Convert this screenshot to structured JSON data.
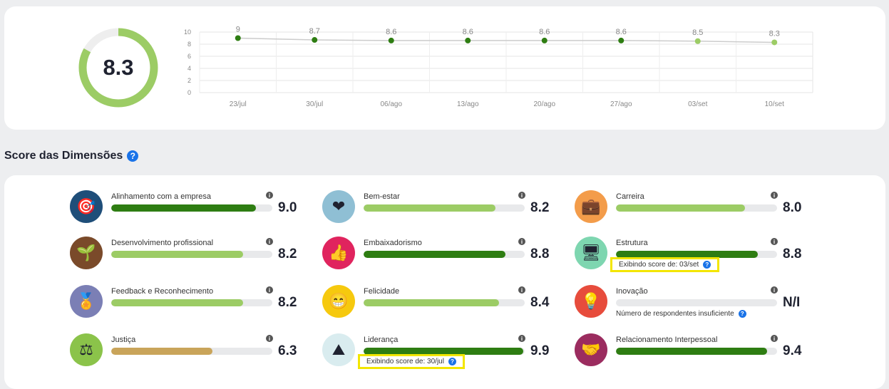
{
  "overall": {
    "score": "8.3",
    "score_fraction": 0.83,
    "ring_color": "#9ccc65",
    "ring_track": "#eeeeee"
  },
  "chart_data": {
    "type": "line",
    "categories": [
      "23/jul",
      "30/jul",
      "06/ago",
      "13/ago",
      "20/ago",
      "27/ago",
      "03/set",
      "10/set"
    ],
    "values": [
      9,
      8.7,
      8.6,
      8.6,
      8.6,
      8.6,
      8.5,
      8.3
    ],
    "data_labels": [
      "9",
      "8.7",
      "8.6",
      "8.6",
      "8.6",
      "8.6",
      "8.5",
      "8.3"
    ],
    "yticks": [
      "10",
      "8",
      "6",
      "4",
      "2",
      "0"
    ],
    "ylim": [
      0,
      10
    ],
    "point_colors": [
      "#2e7d12",
      "#2e7d12",
      "#2e7d12",
      "#2e7d12",
      "#2e7d12",
      "#2e7d12",
      "#9ccc65",
      "#9ccc65"
    ],
    "line_color": "#cccccc",
    "grid": true
  },
  "section": {
    "title": "Score das Dimensões",
    "help": "?"
  },
  "dimensions": [
    {
      "name": "Alinhamento com a empresa",
      "score": "9.0",
      "fill": 0.9,
      "color": "#2e7d12",
      "icon": "🎯",
      "icon_bg": "#1f4e79",
      "info": "i"
    },
    {
      "name": "Bem-estar",
      "score": "8.2",
      "fill": 0.82,
      "color": "#9ccc65",
      "icon": "❤",
      "icon_bg": "#8fbfd4",
      "info": "i"
    },
    {
      "name": "Carreira",
      "score": "8.0",
      "fill": 0.8,
      "color": "#9ccc65",
      "icon": "💼",
      "icon_bg": "#f39c4a",
      "info": "i"
    },
    {
      "name": "Desenvolvimento profissional",
      "score": "8.2",
      "fill": 0.82,
      "color": "#9ccc65",
      "icon": "🌱",
      "icon_bg": "#7a4a2a",
      "info": "i"
    },
    {
      "name": "Embaixadorismo",
      "score": "8.8",
      "fill": 0.88,
      "color": "#2e7d12",
      "icon": "👍",
      "icon_bg": "#e0245e",
      "info": "i"
    },
    {
      "name": "Estrutura",
      "score": "8.8",
      "fill": 0.88,
      "color": "#2e7d12",
      "icon": "🖥",
      "icon_bg": "#7ed6b0",
      "info": "i",
      "note": "Exibindo score de: 03/set",
      "highlight": true
    },
    {
      "name": "Feedback e Reconhecimento",
      "score": "8.2",
      "fill": 0.82,
      "color": "#9ccc65",
      "icon": "🏅",
      "icon_bg": "#7b7fb5",
      "info": "i"
    },
    {
      "name": "Felicidade",
      "score": "8.4",
      "fill": 0.84,
      "color": "#9ccc65",
      "icon": "😁",
      "icon_bg": "#f6c90e",
      "info": "i"
    },
    {
      "name": "Inovação",
      "score": "N/I",
      "fill": 0,
      "color": "#9ccc65",
      "icon": "💡",
      "icon_bg": "#e74c3c",
      "info": "i",
      "note": "Número de respondentes insuficiente",
      "highlight": false
    },
    {
      "name": "Justiça",
      "score": "6.3",
      "fill": 0.63,
      "color": "#c9a45a",
      "icon": "⚖",
      "icon_bg": "#8bc34a",
      "info": "i"
    },
    {
      "name": "Liderança",
      "score": "9.9",
      "fill": 0.99,
      "color": "#2e7d12",
      "icon": "⛰",
      "icon_bg": "#d9ecef",
      "info": "i",
      "note": "Exibindo score de: 30/jul",
      "highlight": true
    },
    {
      "name": "Relacionamento Interpessoal",
      "score": "9.4",
      "fill": 0.94,
      "color": "#2e7d12",
      "icon": "🤝",
      "icon_bg": "#9b2c5f",
      "info": "i"
    }
  ]
}
